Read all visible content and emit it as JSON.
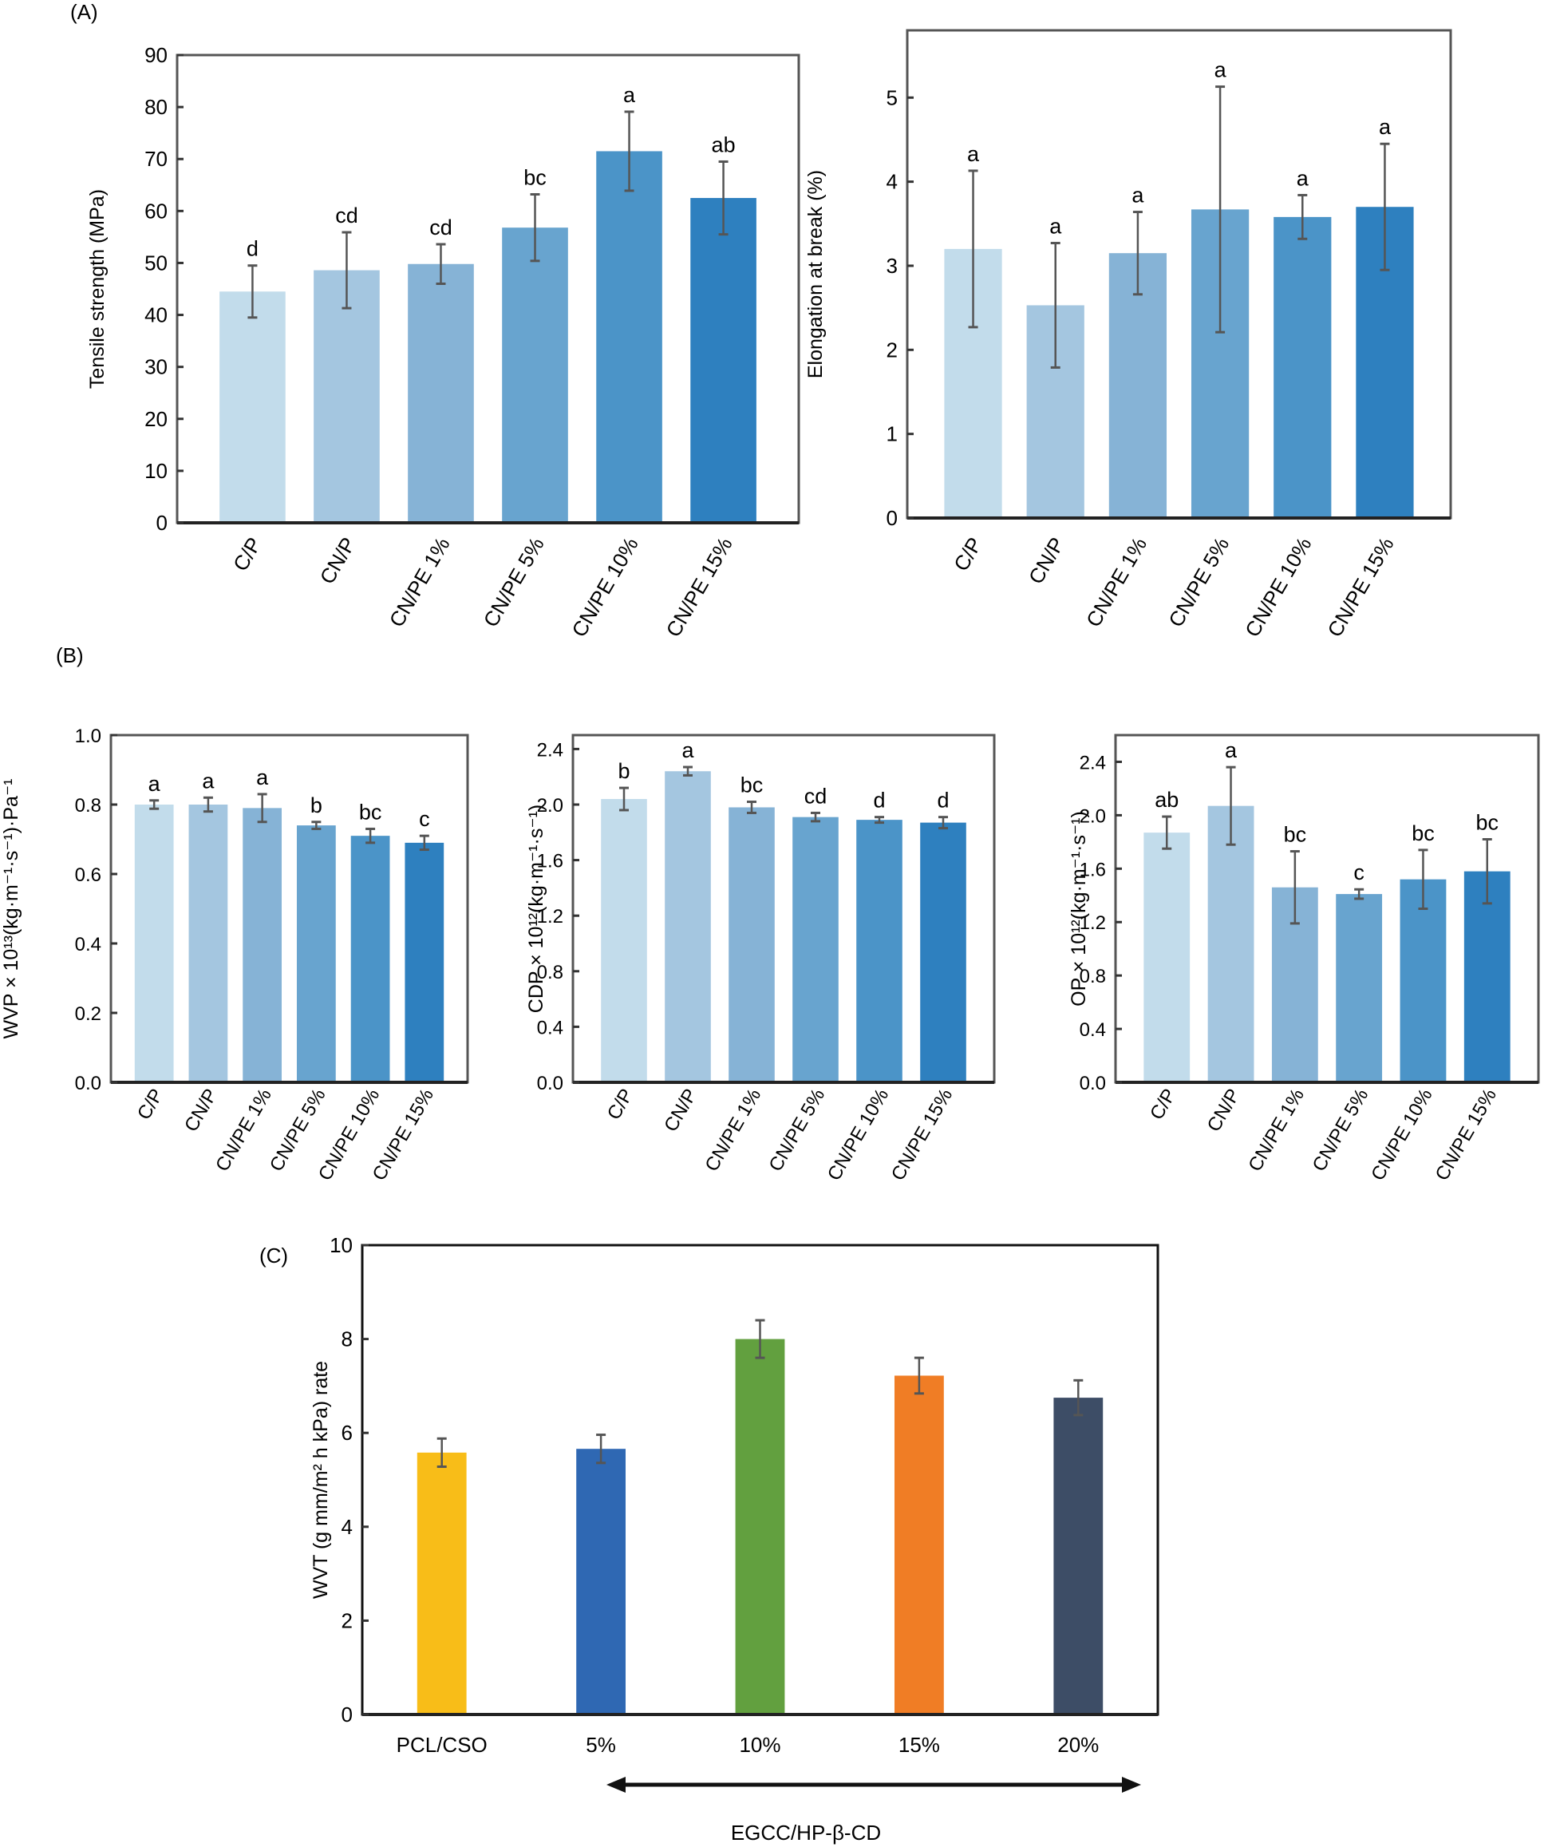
{
  "panel_labels": {
    "a": "(A)",
    "b": "(B)",
    "c": "(C)"
  },
  "chart_data": [
    {
      "id": "tensile",
      "panel": "A",
      "type": "bar",
      "ylabel": "Tensile strength (MPa)",
      "xlabel": "",
      "categories": [
        "C/P",
        "CN/P",
        "CN/PE 1%",
        "CN/PE 5%",
        "CN/PE 10%",
        "CN/PE 15%"
      ],
      "values": [
        44.5,
        48.6,
        49.8,
        56.8,
        71.5,
        62.5
      ],
      "errors": [
        5.0,
        7.3,
        3.8,
        6.4,
        7.6,
        7.0
      ],
      "significance": [
        "d",
        "cd",
        "cd",
        "bc",
        "a",
        "ab"
      ],
      "ylim": [
        0,
        90
      ],
      "yticks": [
        "0",
        "10",
        "20",
        "30",
        "40",
        "50",
        "60",
        "70",
        "80",
        "90"
      ],
      "colors": [
        "#c2dceb",
        "#a4c6e0",
        "#86b3d6",
        "#68a4cf",
        "#4b94c8",
        "#2e80bf"
      ],
      "grid": false
    },
    {
      "id": "elongation",
      "panel": "A",
      "type": "bar",
      "ylabel": "Elongation at break (%)",
      "xlabel": "",
      "categories": [
        "C/P",
        "CN/P",
        "CN/PE 1%",
        "CN/PE 5%",
        "CN/PE 10%",
        "CN/PE 15%"
      ],
      "values": [
        3.2,
        2.53,
        3.15,
        3.67,
        3.58,
        3.7
      ],
      "errors": [
        0.93,
        0.74,
        0.49,
        1.46,
        0.26,
        0.75
      ],
      "significance": [
        "a",
        "a",
        "a",
        "a",
        "a",
        "a"
      ],
      "ylim": [
        0,
        5.8
      ],
      "yticks": [
        "0",
        "1",
        "2",
        "3",
        "4",
        "5"
      ],
      "colors": [
        "#c2dceb",
        "#a4c6e0",
        "#86b3d6",
        "#68a4cf",
        "#4b94c8",
        "#2e80bf"
      ],
      "grid": false
    },
    {
      "id": "wvp",
      "panel": "B",
      "type": "bar",
      "ylabel": "WVP × 10¹³(kg·m⁻¹·s⁻¹)·Pa⁻¹",
      "xlabel": "",
      "categories": [
        "C/P",
        "CN/P",
        "CN/PE 1%",
        "CN/PE 5%",
        "CN/PE 10%",
        "CN/PE 15%"
      ],
      "values": [
        0.8,
        0.8,
        0.79,
        0.74,
        0.71,
        0.69
      ],
      "errors": [
        0.012,
        0.02,
        0.04,
        0.01,
        0.02,
        0.02
      ],
      "significance": [
        "a",
        "a",
        "a",
        "b",
        "bc",
        "c"
      ],
      "ylim": [
        0,
        1.0
      ],
      "yticks": [
        "0.0",
        "0.2",
        "0.4",
        "0.6",
        "0.8",
        "1.0"
      ],
      "colors": [
        "#c2dceb",
        "#a4c6e0",
        "#86b3d6",
        "#68a4cf",
        "#4b94c8",
        "#2e80bf"
      ],
      "grid": false
    },
    {
      "id": "cdp",
      "panel": "B",
      "type": "bar",
      "ylabel": "CDP × 10¹²(kg·m⁻¹·s⁻¹)",
      "xlabel": "",
      "categories": [
        "C/P",
        "CN/P",
        "CN/PE 1%",
        "CN/PE 5%",
        "CN/PE 10%",
        "CN/PE 15%"
      ],
      "values": [
        2.04,
        2.24,
        1.98,
        1.91,
        1.89,
        1.87
      ],
      "errors": [
        0.08,
        0.03,
        0.04,
        0.03,
        0.02,
        0.04
      ],
      "significance": [
        "b",
        "a",
        "bc",
        "cd",
        "d",
        "d"
      ],
      "ylim": [
        0,
        2.5
      ],
      "yticks": [
        "0.0",
        "0.4",
        "0.8",
        "1.2",
        "1.6",
        "2.0",
        "2.4"
      ],
      "colors": [
        "#c2dceb",
        "#a4c6e0",
        "#86b3d6",
        "#68a4cf",
        "#4b94c8",
        "#2e80bf"
      ],
      "grid": false
    },
    {
      "id": "op",
      "panel": "B",
      "type": "bar",
      "ylabel": "OP × 10¹²(kg·m⁻¹·s⁻¹)",
      "xlabel": "",
      "categories": [
        "C/P",
        "CN/P",
        "CN/PE 1%",
        "CN/PE 5%",
        "CN/PE 10%",
        "CN/PE 15%"
      ],
      "values": [
        1.87,
        2.07,
        1.46,
        1.41,
        1.52,
        1.58
      ],
      "errors": [
        0.12,
        0.29,
        0.27,
        0.035,
        0.22,
        0.24
      ],
      "significance": [
        "ab",
        "a",
        "bc",
        "c",
        "bc",
        "bc"
      ],
      "ylim": [
        0,
        2.6
      ],
      "yticks": [
        "0.0",
        "0.4",
        "0.8",
        "1.2",
        "1.6",
        "2.0",
        "2.4"
      ],
      "colors": [
        "#c2dceb",
        "#a4c6e0",
        "#86b3d6",
        "#68a4cf",
        "#4b94c8",
        "#2e80bf"
      ],
      "grid": false
    },
    {
      "id": "wvt",
      "panel": "C",
      "type": "bar",
      "ylabel": "WVT (g mm/m² h kPa) rate",
      "xlabel": "EGCC/HP-β-CD",
      "categories": [
        "PCL/CSO",
        "5%",
        "10%",
        "15%",
        "20%"
      ],
      "values": [
        5.58,
        5.66,
        8.0,
        7.22,
        6.75
      ],
      "errors": [
        0.3,
        0.3,
        0.4,
        0.38,
        0.37
      ],
      "significance": [
        "",
        "",
        "",
        "",
        ""
      ],
      "ylim": [
        0,
        10
      ],
      "yticks": [
        "0",
        "2",
        "4",
        "6",
        "8",
        "10"
      ],
      "colors": [
        "#f8bd18",
        "#2f68b3",
        "#62a03f",
        "#f07d25",
        "#3d4d66"
      ],
      "grid": false
    }
  ]
}
